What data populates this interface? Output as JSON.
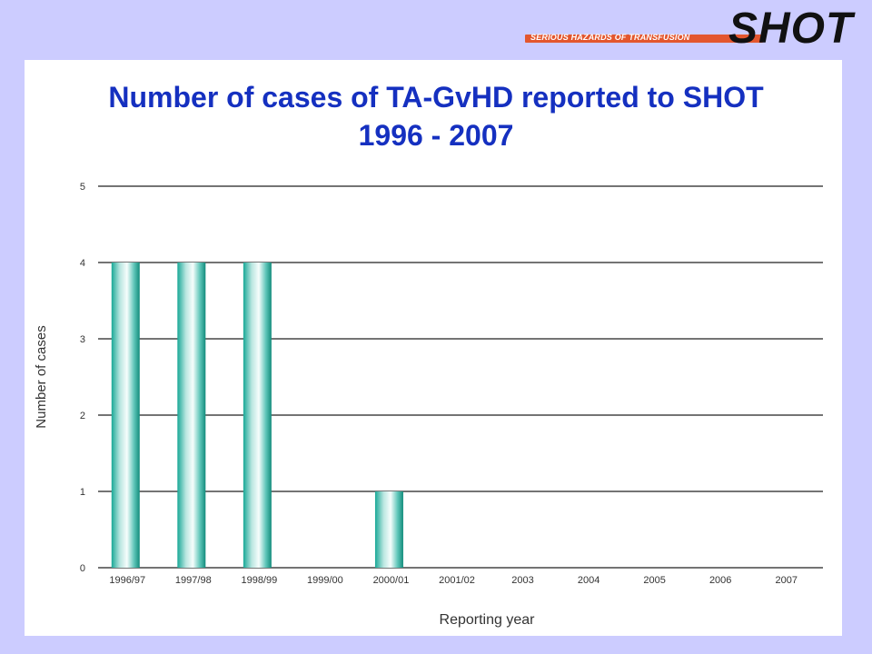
{
  "logo": {
    "tagline": "SERIOUS HAZARDS OF TRANSFUSION",
    "wordmark": "SHOT"
  },
  "title": {
    "line1": "Number of cases of TA-GvHD reported to SHOT",
    "line2": "1996 - 2007"
  },
  "colors": {
    "background": "#ccccff",
    "title": "#1530c0",
    "bar": "#19a897",
    "logo_bar": "#e3562e"
  },
  "chart_data": {
    "type": "bar",
    "title": "Number of cases of TA-GvHD reported to SHOT 1996 - 2007",
    "xlabel": "Reporting year",
    "ylabel": "Number of cases",
    "categories": [
      "1996/97",
      "1997/98",
      "1998/99",
      "1999/00",
      "2000/01",
      "2001/02",
      "2003",
      "2004",
      "2005",
      "2006",
      "2007"
    ],
    "values": [
      4,
      4,
      4,
      0,
      1,
      0,
      0,
      0,
      0,
      0,
      0
    ],
    "ylim": [
      0,
      5
    ],
    "yticks": [
      0,
      1,
      2,
      3,
      4,
      5
    ],
    "grid": true,
    "legend": "none"
  }
}
